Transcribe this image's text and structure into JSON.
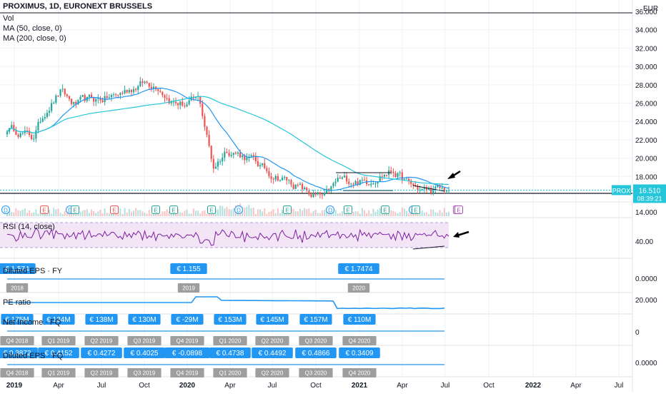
{
  "header": {
    "symbol_title": "PROXIMUS, 1D, EURONEXT BRUSSELS",
    "indicators": [
      "Vol",
      "MA (50, close, 0)",
      "MA (200, close, 0)"
    ],
    "currency": "EUR"
  },
  "price_axis": {
    "ticks": [
      "36.000",
      "34.000",
      "32.000",
      "30.000",
      "28.000",
      "26.000",
      "24.000",
      "22.000",
      "20.000",
      "18.000",
      "16.000",
      "14.000"
    ],
    "last_price_symbol": "PROX",
    "last_price": "16.510",
    "countdown": "08:39:21"
  },
  "event_markers": [
    "D",
    "E",
    "D",
    "E",
    "E",
    "E",
    "E",
    "E",
    "D",
    "E",
    "D",
    "E",
    "E",
    "D",
    "E",
    "E",
    "E"
  ],
  "rsi": {
    "label": "RSI (14, close)",
    "tick": "40.00"
  },
  "diluted_eps_fy": {
    "label": "Diluted EPS · FY",
    "axis_tick": "0.0000",
    "values": [
      "€ 1.574",
      "€ 1.155",
      "€ 1.7474"
    ],
    "periods": [
      "2018",
      "2019",
      "2020"
    ]
  },
  "pe_ratio": {
    "label": "PE ratio",
    "axis_tick": "20.000"
  },
  "net_income": {
    "label": "Net Income · FQ",
    "axis_tick": "0",
    "values": [
      "€ 175M",
      "€ 134M",
      "€ 138M",
      "€ 130M",
      "€ -29M",
      "€ 153M",
      "€ 145M",
      "€ 157M",
      "€ 110M"
    ],
    "periods": [
      "Q4 2018",
      "Q1 2019",
      "Q2 2019",
      "Q3 2019",
      "Q4 2019",
      "Q1 2020",
      "Q2 2020",
      "Q3 2020",
      "Q4 2020"
    ]
  },
  "diluted_eps_fq": {
    "label": "Diluted EPS · FQ",
    "axis_tick": "0.0000",
    "values": [
      "€ 0.3872",
      "€ 0.4152",
      "€ 0.4272",
      "€ 0.4025",
      "€ -0.0898",
      "€ 0.4738",
      "€ 0.4492",
      "€ 0.4866",
      "€ 0.3409"
    ],
    "periods": [
      "Q4 2018",
      "Q1 2019",
      "Q2 2019",
      "Q3 2019",
      "Q4 2019",
      "Q1 2020",
      "Q2 2020",
      "Q3 2020",
      "Q4 2020"
    ]
  },
  "time_axis": [
    "2019",
    "Apr",
    "Jul",
    "Oct",
    "2020",
    "Apr",
    "Jul",
    "Oct",
    "2021",
    "Apr",
    "Jul",
    "Oct",
    "2022",
    "Apr",
    "Jul"
  ],
  "colors": {
    "candle_up": "#26a69a",
    "candle_down": "#ef5350",
    "ma50": "#2196f3",
    "ma200": "#26c6da",
    "rsi_line": "#7b1fa2",
    "rsi_band": "#f3e5f5",
    "badge": "#2196f3",
    "period_tag": "#9e9e9e",
    "price_tag": "#26c6da"
  },
  "chart_data": {
    "type": "line",
    "title": "PROXIMUS, 1D, EURONEXT BRUSSELS",
    "x": [
      "2018-11",
      "2019-01",
      "2019-02",
      "2019-03",
      "2019-04",
      "2019-05",
      "2019-06",
      "2019-07",
      "2019-08",
      "2019-09",
      "2019-10",
      "2019-11",
      "2019-12",
      "2020-01",
      "2020-02",
      "2020-03",
      "2020-04",
      "2020-05",
      "2020-06",
      "2020-07",
      "2020-08",
      "2020-09",
      "2020-10",
      "2020-11",
      "2020-12",
      "2021-01",
      "2021-02",
      "2021-03",
      "2021-04",
      "2021-05",
      "2021-06"
    ],
    "series": [
      {
        "name": "PROX",
        "values": [
          23.6,
          23.0,
          22.2,
          25.4,
          27.2,
          25.8,
          26.3,
          26.5,
          26.8,
          27.6,
          28.2,
          28.0,
          26.2,
          25.8,
          26.4,
          19.0,
          21.0,
          20.4,
          19.6,
          18.4,
          17.8,
          17.0,
          16.0,
          15.6,
          17.6,
          17.6,
          17.4,
          18.2,
          18.6,
          17.2,
          16.51
        ]
      }
    ],
    "ylim": [
      14,
      36
    ],
    "xlabel": "",
    "ylabel": "EUR"
  }
}
